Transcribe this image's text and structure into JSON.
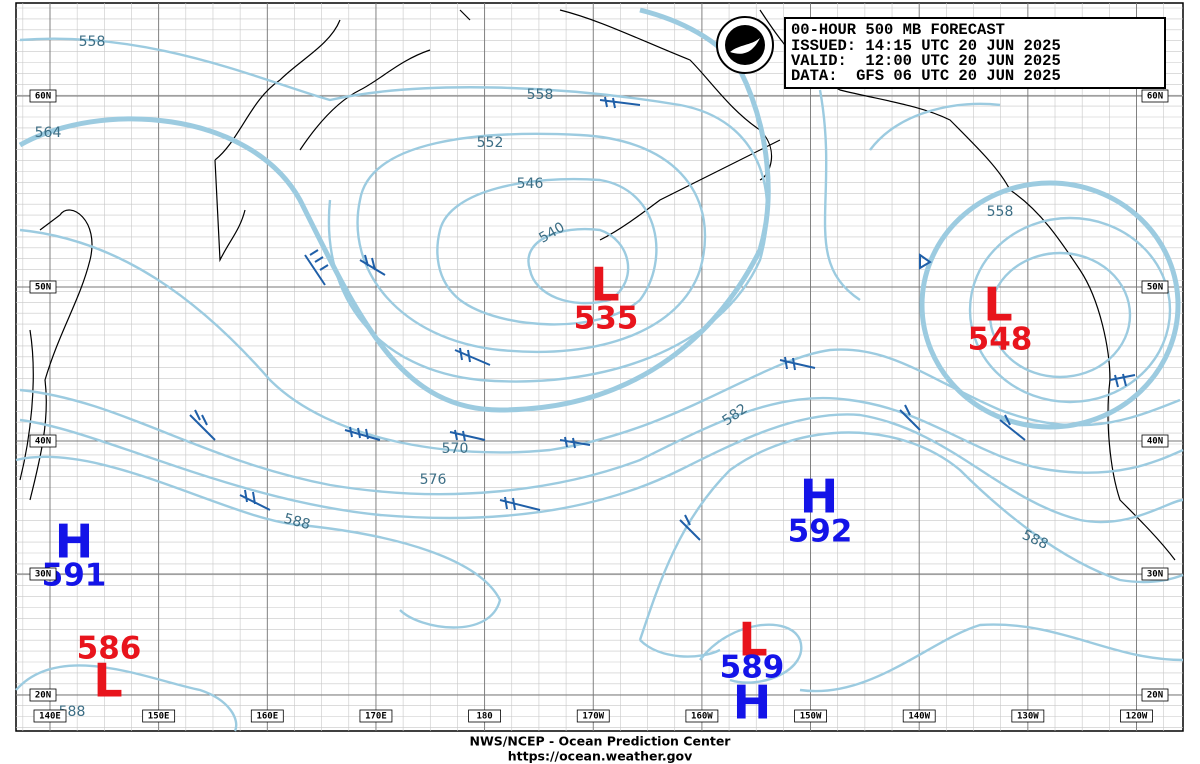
{
  "header": {
    "lines": [
      "00-HOUR 500 MB FORECAST",
      "ISSUED: 14:15 UTC 20 JUN 2025",
      "VALID:  12:00 UTC 20 JUN 2025",
      "DATA:  GFS 06 UTC 20 JUN 2025"
    ]
  },
  "latitude_labels": [
    "60N",
    "50N",
    "40N",
    "30N",
    "20N"
  ],
  "longitude_labels": [
    "140E",
    "150E",
    "160E",
    "170E",
    "180",
    "170W",
    "160W",
    "150W",
    "140W",
    "130W",
    "120W"
  ],
  "contour_labels": [
    "558",
    "558",
    "564",
    "552",
    "546",
    "540",
    "570",
    "576",
    "588",
    "582",
    "588",
    "558",
    "588"
  ],
  "centers": [
    {
      "letter": "L",
      "value": "535"
    },
    {
      "letter": "L",
      "value": "548"
    },
    {
      "letter": "H",
      "value": "592"
    },
    {
      "letter": "H",
      "value": "591"
    },
    {
      "letter": "L",
      "value": "586"
    },
    {
      "letter": "H",
      "value": "589"
    },
    {
      "letter": "L"
    }
  ],
  "footer": {
    "lines": [
      "NWS/NCEP - Ocean Prediction Center",
      "https://ocean.weather.gov"
    ]
  }
}
